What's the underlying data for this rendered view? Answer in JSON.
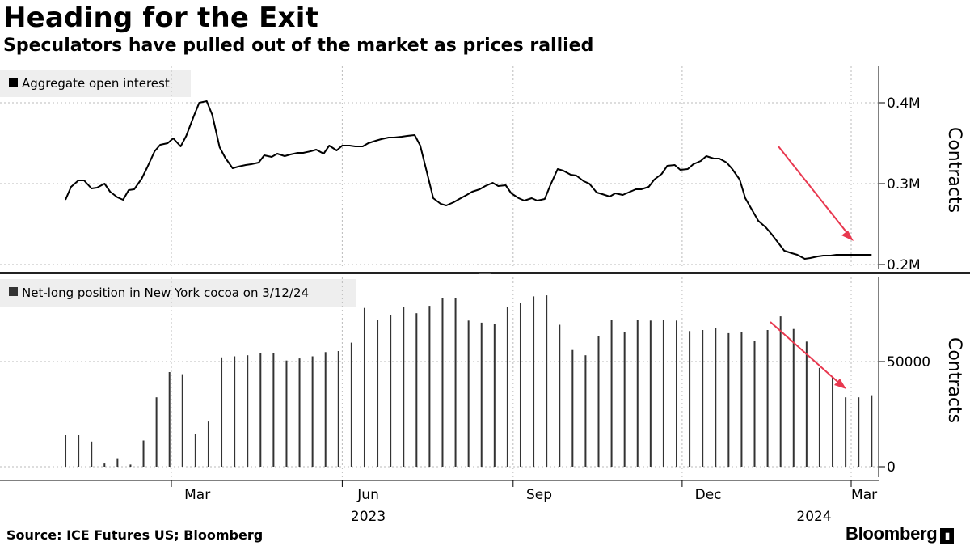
{
  "header": {
    "title": "Heading for the Exit",
    "subtitle": "Speculators have pulled out of the market as prices rallied"
  },
  "footer": {
    "source": "Source: ICE Futures US; Bloomberg",
    "logo": "Bloomberg"
  },
  "colors": {
    "line": "#000000",
    "bars": "#333333",
    "arrow": "#e8384f",
    "grid": "#bbbbbb",
    "legend_bg": "#eeeeee",
    "divider": "#222222"
  },
  "x_axis": {
    "month_labels": [
      "Mar",
      "Jun",
      "Sep",
      "Dec",
      "Mar"
    ],
    "year_labels": [
      "2023",
      "2024"
    ]
  },
  "chart_data": [
    {
      "type": "line",
      "legend": "Aggregate open interest",
      "ylabel": "Contracts",
      "yticks": [
        {
          "value": 200000,
          "label": "0.2M"
        },
        {
          "value": 300000,
          "label": "0.3M"
        },
        {
          "value": 400000,
          "label": "0.4M"
        }
      ],
      "ylim": [
        195000,
        445000
      ],
      "grid": true,
      "annotation": "red arrow pointing down-right",
      "series": [
        {
          "x": [
            "2023-01-03",
            "2023-01-06",
            "2023-01-10",
            "2023-01-13",
            "2023-01-17",
            "2023-01-20",
            "2023-01-24",
            "2023-01-27",
            "2023-01-31",
            "2023-02-03",
            "2023-02-06",
            "2023-02-09",
            "2023-02-13",
            "2023-02-16",
            "2023-02-20",
            "2023-02-23",
            "2023-02-27",
            "2023-03-02",
            "2023-03-06",
            "2023-03-09",
            "2023-03-13",
            "2023-03-16",
            "2023-03-20",
            "2023-03-23",
            "2023-03-27",
            "2023-03-30",
            "2023-04-03",
            "2023-04-06",
            "2023-04-10",
            "2023-04-13",
            "2023-04-17",
            "2023-04-20",
            "2023-04-24",
            "2023-04-27",
            "2023-05-01",
            "2023-05-04",
            "2023-05-08",
            "2023-05-11",
            "2023-05-15",
            "2023-05-18",
            "2023-05-22",
            "2023-05-25",
            "2023-05-29",
            "2023-06-01",
            "2023-06-05",
            "2023-06-08",
            "2023-06-12",
            "2023-06-15",
            "2023-06-19",
            "2023-06-22",
            "2023-06-26",
            "2023-06-29",
            "2023-07-03",
            "2023-07-06",
            "2023-07-10",
            "2023-07-13",
            "2023-07-17",
            "2023-07-20",
            "2023-07-24",
            "2023-07-27",
            "2023-07-31",
            "2023-08-03",
            "2023-08-07",
            "2023-08-10",
            "2023-08-14",
            "2023-08-17",
            "2023-08-21",
            "2023-08-24",
            "2023-08-28",
            "2023-08-31",
            "2023-09-04",
            "2023-09-07",
            "2023-09-11",
            "2023-09-14",
            "2023-09-18",
            "2023-09-21",
            "2023-09-25",
            "2023-09-28",
            "2023-10-02",
            "2023-10-05",
            "2023-10-09",
            "2023-10-12",
            "2023-10-16",
            "2023-10-19",
            "2023-10-23",
            "2023-10-26",
            "2023-10-30",
            "2023-11-02",
            "2023-11-06",
            "2023-11-09",
            "2023-11-13",
            "2023-11-16",
            "2023-11-20",
            "2023-11-23",
            "2023-11-27",
            "2023-11-30",
            "2023-12-04",
            "2023-12-07",
            "2023-12-11",
            "2023-12-14",
            "2023-12-18",
            "2023-12-21",
            "2023-12-25",
            "2023-12-28",
            "2024-01-01",
            "2024-01-04",
            "2024-01-08",
            "2024-01-11",
            "2024-01-15",
            "2024-01-18",
            "2024-01-22",
            "2024-01-25",
            "2024-01-29",
            "2024-02-01",
            "2024-02-05",
            "2024-02-08",
            "2024-02-12",
            "2024-02-15",
            "2024-02-19",
            "2024-02-22",
            "2024-02-26",
            "2024-02-29",
            "2024-03-04",
            "2024-03-07",
            "2024-03-11",
            "2024-03-12"
          ],
          "values": [
            280000,
            296000,
            304000,
            304000,
            294000,
            295000,
            300000,
            290000,
            283000,
            280000,
            292000,
            293000,
            306000,
            320000,
            340000,
            348000,
            350000,
            356000,
            346000,
            359000,
            383000,
            400000,
            402000,
            385000,
            345000,
            332000,
            319000,
            321000,
            323000,
            324000,
            326000,
            335000,
            333000,
            337000,
            334000,
            336000,
            338000,
            338000,
            340000,
            342000,
            337000,
            347000,
            341000,
            347000,
            347000,
            346000,
            346000,
            350000,
            353000,
            355000,
            357000,
            357000,
            358000,
            359000,
            360000,
            347000,
            310000,
            282000,
            275000,
            273000,
            277000,
            281000,
            286000,
            290000,
            293000,
            297000,
            301000,
            297000,
            298000,
            288000,
            282000,
            279000,
            282000,
            279000,
            281000,
            298000,
            318000,
            316000,
            311000,
            310000,
            303000,
            300000,
            289000,
            287000,
            284000,
            288000,
            286000,
            289000,
            293000,
            293000,
            296000,
            305000,
            312000,
            322000,
            323000,
            317000,
            318000,
            324000,
            328000,
            334000,
            331000,
            331000,
            326000,
            318000,
            305000,
            282000,
            266000,
            254000,
            246000,
            238000,
            226000,
            217000,
            214000,
            212000,
            207000,
            208000,
            210000,
            211000,
            211000,
            212000,
            212000,
            212000,
            212000,
            212000,
            212000,
            212000
          ]
        }
      ]
    },
    {
      "type": "bar",
      "legend": "Net-long position in New York cocoa on 3/12/24",
      "ylabel": "Contracts",
      "yticks": [
        {
          "value": 0,
          "label": "0"
        },
        {
          "value": 50000,
          "label": "50000"
        }
      ],
      "ylim": [
        -5000,
        90000
      ],
      "grid": true,
      "annotation": "red arrow pointing down-right",
      "series": [
        {
          "x": [
            "2023-01-03",
            "2023-01-10",
            "2023-01-17",
            "2023-01-24",
            "2023-01-31",
            "2023-02-07",
            "2023-02-14",
            "2023-02-21",
            "2023-02-28",
            "2023-03-07",
            "2023-03-14",
            "2023-03-21",
            "2023-03-28",
            "2023-04-04",
            "2023-04-11",
            "2023-04-18",
            "2023-04-25",
            "2023-05-02",
            "2023-05-09",
            "2023-05-16",
            "2023-05-23",
            "2023-05-30",
            "2023-06-06",
            "2023-06-13",
            "2023-06-20",
            "2023-06-27",
            "2023-07-04",
            "2023-07-11",
            "2023-07-18",
            "2023-07-25",
            "2023-08-01",
            "2023-08-08",
            "2023-08-15",
            "2023-08-22",
            "2023-08-29",
            "2023-09-05",
            "2023-09-12",
            "2023-09-19",
            "2023-09-26",
            "2023-10-03",
            "2023-10-10",
            "2023-10-17",
            "2023-10-24",
            "2023-10-31",
            "2023-11-07",
            "2023-11-14",
            "2023-11-21",
            "2023-11-28",
            "2023-12-05",
            "2023-12-12",
            "2023-12-19",
            "2023-12-26",
            "2024-01-02",
            "2024-01-09",
            "2024-01-16",
            "2024-01-23",
            "2024-01-30",
            "2024-02-06",
            "2024-02-13",
            "2024-02-20",
            "2024-02-27",
            "2024-03-05",
            "2024-03-12"
          ],
          "values": [
            15000,
            15000,
            12000,
            1500,
            4000,
            1000,
            12500,
            33000,
            45000,
            44000,
            15500,
            21500,
            52000,
            52500,
            53000,
            54000,
            54000,
            50500,
            51500,
            52500,
            54500,
            55000,
            59000,
            75500,
            70000,
            72000,
            76000,
            73000,
            76500,
            80000,
            80000,
            69500,
            68500,
            68000,
            76000,
            78000,
            81000,
            81500,
            67500,
            55500,
            53000,
            62000,
            70000,
            64000,
            70000,
            69500,
            70000,
            69500,
            64500,
            65000,
            66000,
            63500,
            64000,
            60000,
            65000,
            71500,
            65500,
            59500,
            47000,
            43000,
            33000,
            33000,
            34000
          ]
        }
      ]
    }
  ]
}
